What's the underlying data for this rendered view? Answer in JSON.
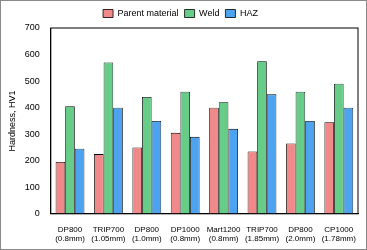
{
  "chart_data": {
    "type": "bar",
    "y_label": "Hardness, HV1",
    "categories": [
      [
        "DP800",
        "(0.8mm)"
      ],
      [
        "TRIP700",
        "(1.05mm)"
      ],
      [
        "DP800",
        "(1.0mm)"
      ],
      [
        "DP1000",
        "(0.8mm)"
      ],
      [
        "Mart1200",
        "(0.8mm)"
      ],
      [
        "TRIP700",
        "(1.85mm)"
      ],
      [
        "DP800",
        "(2.0mm)"
      ],
      [
        "CP1000",
        "(1.78mm)"
      ]
    ],
    "series": [
      {
        "name": "Parent material",
        "color": "#f08a8a",
        "values": [
          195,
          225,
          250,
          305,
          400,
          235,
          265,
          345
        ]
      },
      {
        "name": "Weld",
        "color": "#66cc88",
        "values": [
          405,
          570,
          440,
          460,
          420,
          575,
          460,
          490
        ]
      },
      {
        "name": "HAZ",
        "color": "#4da3f0",
        "values": [
          245,
          400,
          350,
          290,
          320,
          450,
          350,
          400
        ]
      }
    ],
    "ylim": [
      0,
      700
    ],
    "yticks": [
      0,
      100,
      200,
      300,
      400,
      500,
      600,
      700
    ],
    "grid": false,
    "legend": "top"
  }
}
